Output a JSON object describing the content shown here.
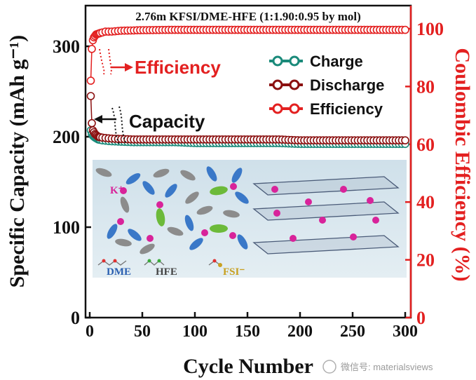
{
  "chart_data": {
    "type": "scatter",
    "title": "2.76m KFSI/DME-HFE (1:1.90:0.95 by mol)",
    "xlabel": "Cycle Number",
    "ylabel_left": "Specific Capacity (mAh g⁻¹)",
    "ylabel_right": "Coulombic Efficiency (%)",
    "xlim": [
      0,
      300
    ],
    "ylim_left": [
      0,
      345
    ],
    "ylim_right": [
      0,
      108
    ],
    "xticks": [
      "0",
      "50",
      "100",
      "150",
      "200",
      "250",
      "300"
    ],
    "yticks_left": [
      "0",
      "100",
      "200",
      "300"
    ],
    "yticks_right": [
      "0",
      "20",
      "40",
      "60",
      "80",
      "100"
    ],
    "legend_position": "top-right",
    "series": [
      {
        "name": "Charge",
        "axis": "left",
        "color": "#1a8a7a",
        "points": [
          [
            1,
            207
          ],
          [
            2,
            203
          ],
          [
            3,
            201
          ],
          [
            5,
            199
          ],
          [
            8,
            197
          ],
          [
            12,
            196
          ],
          [
            20,
            195
          ],
          [
            40,
            194
          ],
          [
            60,
            194
          ],
          [
            80,
            194
          ],
          [
            100,
            193
          ],
          [
            120,
            193
          ],
          [
            140,
            193
          ],
          [
            160,
            193
          ],
          [
            180,
            193
          ],
          [
            200,
            192
          ],
          [
            220,
            192
          ],
          [
            240,
            192
          ],
          [
            260,
            192
          ],
          [
            280,
            192
          ],
          [
            300,
            192
          ]
        ]
      },
      {
        "name": "Discharge",
        "axis": "left",
        "color": "#8b1010",
        "points": [
          [
            1,
            245
          ],
          [
            2,
            215
          ],
          [
            3,
            207
          ],
          [
            5,
            203
          ],
          [
            8,
            200
          ],
          [
            12,
            199
          ],
          [
            20,
            198
          ],
          [
            40,
            197
          ],
          [
            60,
            197
          ],
          [
            80,
            197
          ],
          [
            100,
            197
          ],
          [
            120,
            197
          ],
          [
            140,
            197
          ],
          [
            160,
            197
          ],
          [
            180,
            197
          ],
          [
            200,
            196
          ],
          [
            220,
            196
          ],
          [
            240,
            196
          ],
          [
            260,
            196
          ],
          [
            280,
            196
          ],
          [
            300,
            196
          ]
        ]
      },
      {
        "name": "Efficiency",
        "axis": "right",
        "color": "#e32020",
        "points": [
          [
            1,
            82
          ],
          [
            2,
            93
          ],
          [
            3,
            96
          ],
          [
            4,
            97
          ],
          [
            6,
            98
          ],
          [
            10,
            98.5
          ],
          [
            15,
            99
          ],
          [
            20,
            99
          ],
          [
            30,
            99.3
          ],
          [
            50,
            99.5
          ],
          [
            75,
            99.6
          ],
          [
            100,
            99.6
          ],
          [
            125,
            99.6
          ],
          [
            150,
            99.6
          ],
          [
            175,
            99.6
          ],
          [
            200,
            99.6
          ],
          [
            225,
            99.6
          ],
          [
            250,
            99.6
          ],
          [
            275,
            99.6
          ],
          [
            300,
            99.6
          ]
        ]
      }
    ],
    "annotations": [
      {
        "text": "Efficiency",
        "color": "#e32020"
      },
      {
        "text": "Capacity",
        "color": "#111111"
      }
    ]
  },
  "inset": {
    "labels": {
      "k_ion": "K⁺",
      "dme": "DME",
      "hfe": "HFE",
      "fsi": "FSI⁻"
    }
  },
  "watermark": "微信号: materialsviews"
}
